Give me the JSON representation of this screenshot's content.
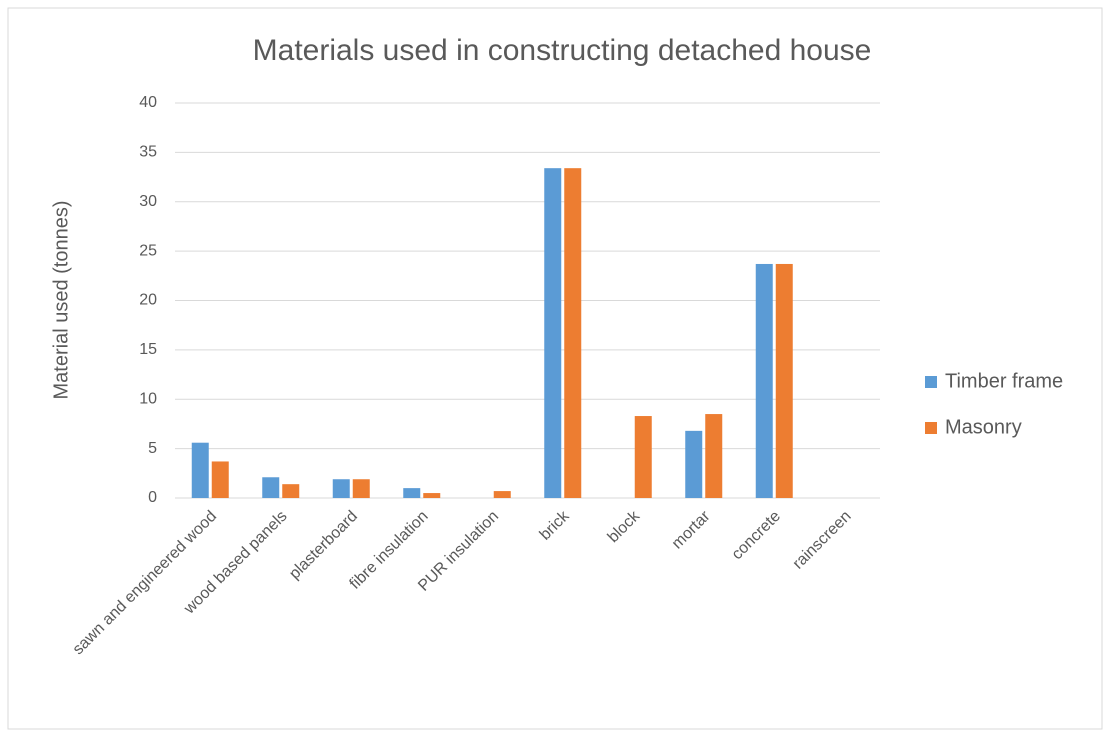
{
  "chart_data": {
    "type": "bar",
    "title": "Materials used in constructing detached house",
    "y_label": "Material used (tonnes)",
    "categories": [
      "sawn and engineered wood",
      "wood based panels",
      "plasterboard",
      "fibre insulation",
      "PUR insulation",
      "brick",
      "block",
      "mortar",
      "concrete",
      "rainscreen"
    ],
    "series": [
      {
        "name": "Timber frame",
        "color": "#5b9bd5",
        "values": [
          5.6,
          2.1,
          1.9,
          1.0,
          0,
          33.4,
          0,
          6.8,
          23.7,
          0
        ]
      },
      {
        "name": "Masonry",
        "color": "#ed7d31",
        "values": [
          3.7,
          1.4,
          1.9,
          0.5,
          0.7,
          33.4,
          8.3,
          8.5,
          23.7,
          0
        ]
      }
    ],
    "ylim": [
      0,
      40
    ],
    "yticks": [
      0,
      5,
      10,
      15,
      20,
      25,
      30,
      35,
      40
    ],
    "grid": true,
    "legend": "right"
  }
}
